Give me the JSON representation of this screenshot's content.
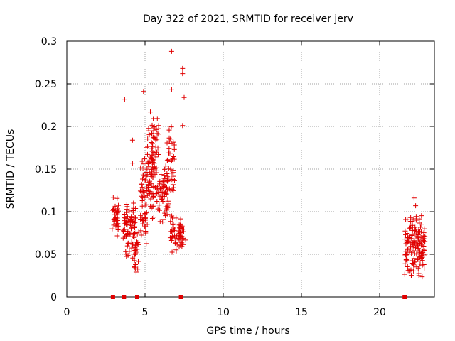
{
  "chart_data": {
    "type": "scatter",
    "title": "Day 322 of 2021, SRMTID for receiver jerv",
    "xlabel": "GPS time / hours",
    "ylabel": "SRMTID / TECUs",
    "xlim": [
      0,
      23.5
    ],
    "ylim": [
      0,
      0.3
    ],
    "xticks": [
      "0",
      "5",
      "10",
      "15",
      "20"
    ],
    "yticks": [
      "0",
      "0.05",
      "0.1",
      "0.15",
      "0.2",
      "0.25",
      "0.3"
    ],
    "grid": true,
    "marker": "plus",
    "color": "#e00000",
    "clusters": [
      {
        "x_range": [
          2.9,
          3.3
        ],
        "y_range": [
          0.06,
          0.13
        ],
        "count": 35
      },
      {
        "x_range": [
          3.6,
          4.4
        ],
        "y_range": [
          0.04,
          0.12
        ],
        "count": 80
      },
      {
        "x_range": [
          4.3,
          4.6
        ],
        "y_range": [
          0.025,
          0.09
        ],
        "count": 25
      },
      {
        "x_range": [
          4.7,
          5.1
        ],
        "y_range": [
          0.05,
          0.18
        ],
        "count": 50
      },
      {
        "x_range": [
          5.1,
          5.6
        ],
        "y_range": [
          0.07,
          0.22
        ],
        "count": 60
      },
      {
        "x_range": [
          5.4,
          5.9
        ],
        "y_range": [
          0.1,
          0.22
        ],
        "count": 55
      },
      {
        "x_range": [
          5.9,
          6.5
        ],
        "y_range": [
          0.08,
          0.16
        ],
        "count": 50
      },
      {
        "x_range": [
          6.4,
          6.9
        ],
        "y_range": [
          0.1,
          0.21
        ],
        "count": 45
      },
      {
        "x_range": [
          6.6,
          7.3
        ],
        "y_range": [
          0.05,
          0.1
        ],
        "count": 40
      },
      {
        "x_range": [
          7.2,
          7.6
        ],
        "y_range": [
          0.05,
          0.09
        ],
        "count": 20
      },
      {
        "x_range": [
          21.6,
          22.9
        ],
        "y_range": [
          0.02,
          0.1
        ],
        "count": 150
      }
    ],
    "points": [
      {
        "x": 3.7,
        "y": 0.232
      },
      {
        "x": 4.9,
        "y": 0.241
      },
      {
        "x": 6.7,
        "y": 0.288
      },
      {
        "x": 6.7,
        "y": 0.243
      },
      {
        "x": 7.4,
        "y": 0.268
      },
      {
        "x": 7.4,
        "y": 0.262
      },
      {
        "x": 7.5,
        "y": 0.234
      },
      {
        "x": 7.4,
        "y": 0.201
      },
      {
        "x": 4.2,
        "y": 0.184
      },
      {
        "x": 4.2,
        "y": 0.157
      },
      {
        "x": 22.2,
        "y": 0.116
      },
      {
        "x": 22.3,
        "y": 0.107
      }
    ],
    "zero_markers_x": [
      2.95,
      3.65,
      4.5,
      7.3,
      21.6
    ]
  }
}
